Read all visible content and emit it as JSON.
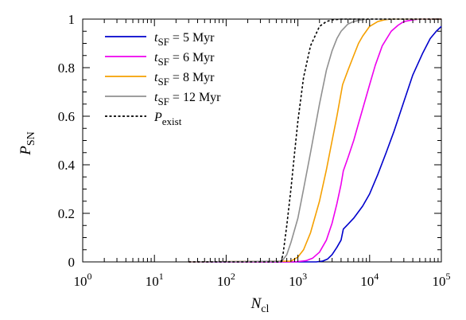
{
  "chart_data": {
    "type": "line",
    "title": "",
    "x_scale": "log",
    "xlim": [
      1,
      100000
    ],
    "ylim": [
      0,
      1
    ],
    "grid": false,
    "legend_position": "top-left",
    "xlabel": {
      "base": "N",
      "sub": "cl"
    },
    "ylabel": {
      "base": "P",
      "sub": "SN"
    },
    "x_ticks": [
      {
        "base": "10",
        "exp": "0"
      },
      {
        "base": "10",
        "exp": "1"
      },
      {
        "base": "10",
        "exp": "2"
      },
      {
        "base": "10",
        "exp": "3"
      },
      {
        "base": "10",
        "exp": "4"
      },
      {
        "base": "10",
        "exp": "5"
      }
    ],
    "x_tick_values": [
      1,
      10,
      100,
      1000,
      10000,
      100000
    ],
    "y_ticks": [
      "0",
      "0.2",
      "0.4",
      "0.6",
      "0.8",
      "1"
    ],
    "y_tick_values": [
      0,
      0.2,
      0.4,
      0.6,
      0.8,
      1
    ],
    "series": [
      {
        "name": {
          "var": "t",
          "sub": "SF",
          "rest": " = 5 Myr"
        },
        "color": "#0000cc",
        "dash": "solid",
        "x": [
          30,
          1000,
          1800,
          2200,
          2600,
          3000,
          3500,
          4000,
          4300,
          5000,
          6000,
          8000,
          10000,
          13000,
          17000,
          22000,
          30000,
          40000,
          55000,
          70000,
          85000,
          100000
        ],
        "y": [
          0,
          0,
          0,
          0.003,
          0.012,
          0.03,
          0.06,
          0.09,
          0.135,
          0.155,
          0.18,
          0.23,
          0.28,
          0.36,
          0.45,
          0.54,
          0.66,
          0.77,
          0.86,
          0.92,
          0.95,
          0.97
        ]
      },
      {
        "name": {
          "var": "t",
          "sub": "SF",
          "rest": " = 6 Myr"
        },
        "color": "#ee00ee",
        "dash": "solid",
        "x": [
          30,
          900,
          1300,
          1600,
          2000,
          2500,
          3000,
          3500,
          4000,
          4300,
          5000,
          6000,
          7000,
          8000,
          10000,
          12000,
          15000,
          20000,
          25000,
          30000,
          40000,
          50000,
          60000,
          100000
        ],
        "y": [
          0,
          0,
          0.005,
          0.015,
          0.04,
          0.09,
          0.16,
          0.24,
          0.32,
          0.375,
          0.43,
          0.5,
          0.57,
          0.63,
          0.73,
          0.81,
          0.89,
          0.95,
          0.975,
          0.99,
          0.997,
          1.0,
          1.0,
          1.0
        ]
      },
      {
        "name": {
          "var": "t",
          "sub": "SF",
          "rest": " = 8 Myr"
        },
        "color": "#f5a000",
        "dash": "solid",
        "x": [
          30,
          800,
          1000,
          1200,
          1500,
          2000,
          2500,
          3000,
          3500,
          4200,
          5000,
          6000,
          7000,
          8000,
          10000,
          13000,
          16000,
          20000,
          30000,
          100000
        ],
        "y": [
          0,
          0.003,
          0.02,
          0.05,
          0.12,
          0.25,
          0.38,
          0.5,
          0.6,
          0.73,
          0.79,
          0.85,
          0.9,
          0.93,
          0.97,
          0.99,
          0.997,
          1.0,
          1.0,
          1.0
        ]
      },
      {
        "name": {
          "var": "t",
          "sub": "SF",
          "rest": " = 12 Myr"
        },
        "color": "#909090",
        "dash": "solid",
        "x": [
          30,
          600,
          700,
          800,
          1000,
          1200,
          1500,
          2000,
          2500,
          3000,
          3500,
          4000,
          5000,
          6000,
          8000,
          10000,
          20000,
          100000
        ],
        "y": [
          0,
          0.003,
          0.03,
          0.08,
          0.18,
          0.3,
          0.45,
          0.65,
          0.79,
          0.87,
          0.92,
          0.95,
          0.98,
          0.99,
          0.998,
          1.0,
          1.0,
          1.0
        ]
      },
      {
        "name": {
          "var": "P",
          "sub": "exist",
          "rest": ""
        },
        "color": "#000000",
        "dash": "dashed",
        "x": [
          30,
          580,
          620,
          700,
          800,
          900,
          1000,
          1200,
          1500,
          2000,
          2500,
          3000,
          4000,
          5000,
          6000,
          10000,
          100000
        ],
        "y": [
          0,
          0,
          0.03,
          0.15,
          0.3,
          0.45,
          0.58,
          0.76,
          0.89,
          0.97,
          0.99,
          0.997,
          1.0,
          1.0,
          1.0,
          1.0,
          1.0
        ]
      }
    ]
  }
}
